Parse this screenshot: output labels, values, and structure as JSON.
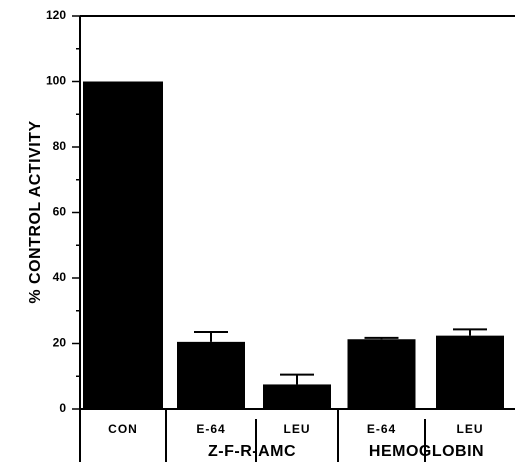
{
  "chart_data": {
    "type": "bar",
    "title": "",
    "xlabel": "",
    "ylabel": "% CONTROL ACTIVITY",
    "ylim": [
      0,
      120
    ],
    "yticks": [
      0,
      20,
      40,
      60,
      80,
      100,
      120
    ],
    "grid": false,
    "bar_color": "#000000",
    "categories": [
      "CON",
      "E-64",
      "LEU",
      "E-64",
      "LEU"
    ],
    "values": [
      100,
      20.5,
      7.5,
      21.3,
      22.4
    ],
    "errors": [
      null,
      3.0,
      3.0,
      0.4,
      1.9
    ],
    "groups": [
      {
        "label": "",
        "categories": [
          0
        ]
      },
      {
        "label": "Z-F-R-AMC",
        "categories": [
          1,
          2
        ]
      },
      {
        "label": "HEMOGLOBIN",
        "categories": [
          3,
          4
        ]
      }
    ]
  }
}
